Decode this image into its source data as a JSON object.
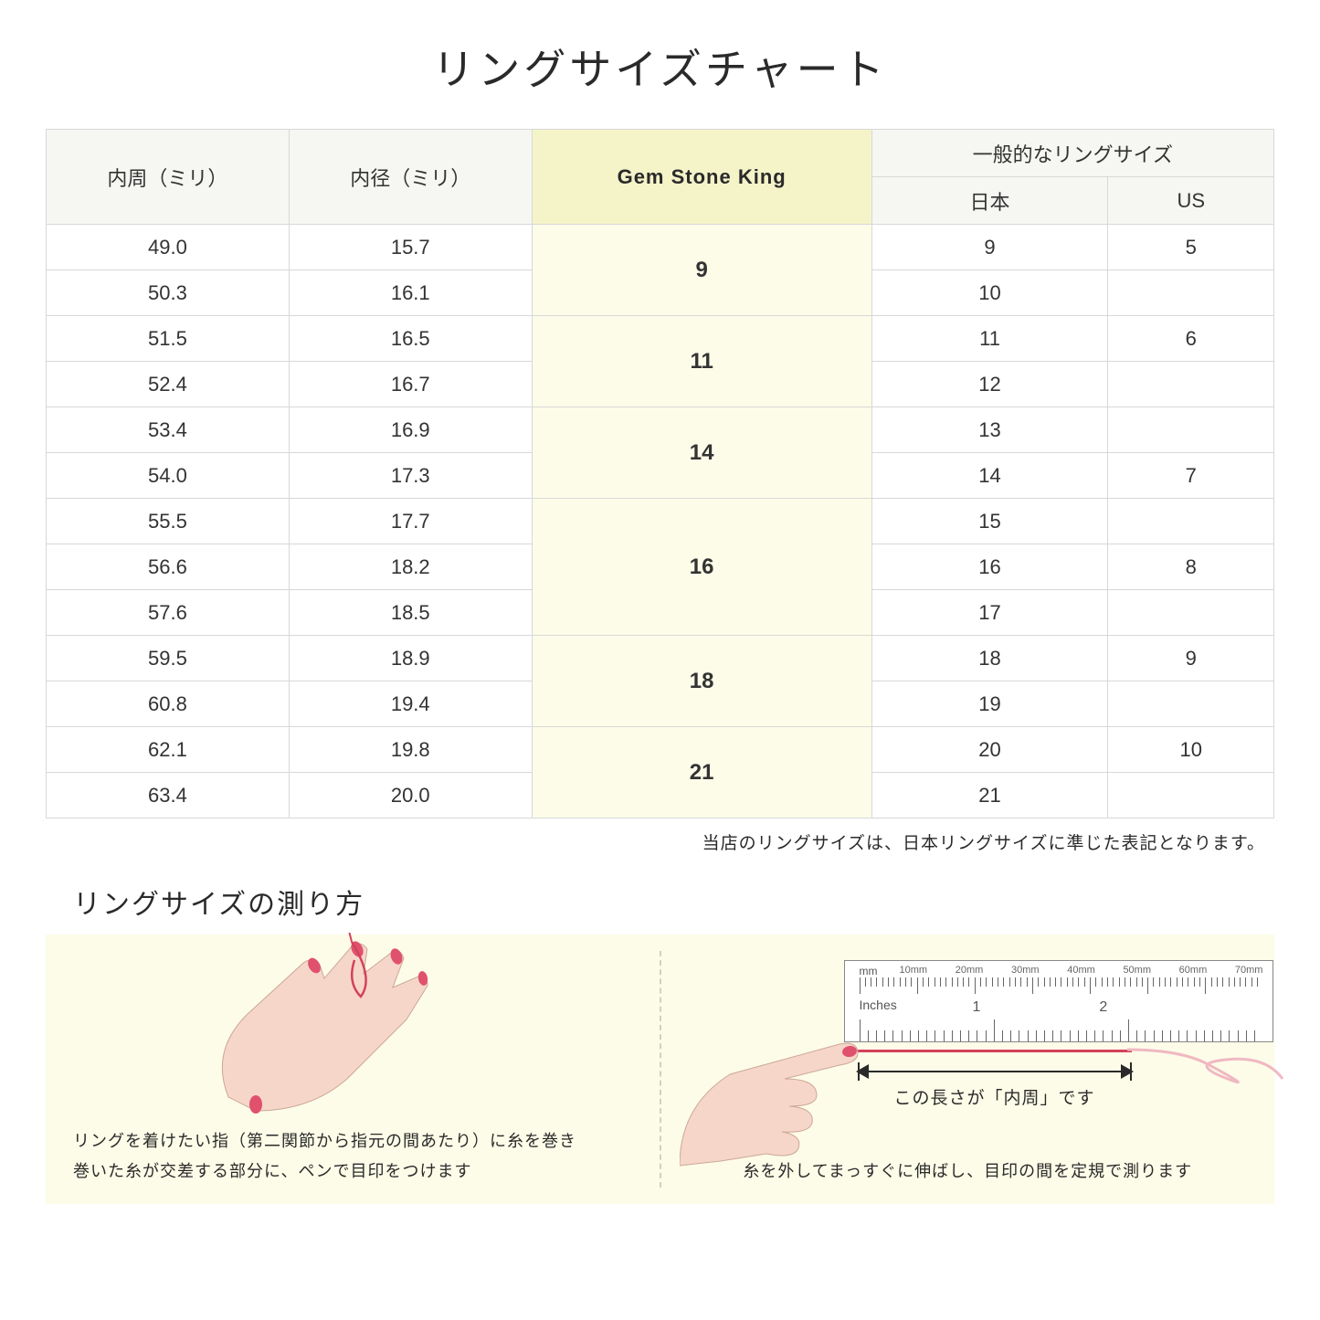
{
  "title": "リングサイズチャート",
  "table": {
    "headers": {
      "circumference": "内周（ミリ）",
      "diameter": "内径（ミリ）",
      "gsk": "Gem Stone King",
      "general": "一般的なリングサイズ",
      "jp": "日本",
      "us": "US"
    },
    "header_bg": "#f6f6f2",
    "gsk_header_bg": "#f5f4c9",
    "gsk_cell_bg": "#fdfce8",
    "border_color": "#d8d8d8",
    "groups": [
      {
        "gsk": "9",
        "rows": [
          {
            "c": "49.0",
            "d": "15.7",
            "jp": "9",
            "us": "5"
          },
          {
            "c": "50.3",
            "d": "16.1",
            "jp": "10",
            "us": ""
          }
        ]
      },
      {
        "gsk": "11",
        "rows": [
          {
            "c": "51.5",
            "d": "16.5",
            "jp": "11",
            "us": "6"
          },
          {
            "c": "52.4",
            "d": "16.7",
            "jp": "12",
            "us": ""
          }
        ]
      },
      {
        "gsk": "14",
        "rows": [
          {
            "c": "53.4",
            "d": "16.9",
            "jp": "13",
            "us": ""
          },
          {
            "c": "54.0",
            "d": "17.3",
            "jp": "14",
            "us": "7"
          }
        ]
      },
      {
        "gsk": "16",
        "rows": [
          {
            "c": "55.5",
            "d": "17.7",
            "jp": "15",
            "us": ""
          },
          {
            "c": "56.6",
            "d": "18.2",
            "jp": "16",
            "us": "8"
          },
          {
            "c": "57.6",
            "d": "18.5",
            "jp": "17",
            "us": ""
          }
        ]
      },
      {
        "gsk": "18",
        "rows": [
          {
            "c": "59.5",
            "d": "18.9",
            "jp": "18",
            "us": "9"
          },
          {
            "c": "60.8",
            "d": "19.4",
            "jp": "19",
            "us": ""
          }
        ]
      },
      {
        "gsk": "21",
        "rows": [
          {
            "c": "62.1",
            "d": "19.8",
            "jp": "20",
            "us": "10"
          },
          {
            "c": "63.4",
            "d": "20.0",
            "jp": "21",
            "us": ""
          }
        ]
      }
    ]
  },
  "footnote": "当店のリングサイズは、日本リングサイズに準じた表記となります。",
  "howto": {
    "title": "リングサイズの測り方",
    "bg": "#fdfce8",
    "left_caption_1": "リングを着けたい指（第二関節から指元の間あたり）に糸を巻き",
    "left_caption_2": "巻いた糸が交差する部分に、ペンで目印をつけます",
    "right_arrow_label": "この長さが「内周」です",
    "right_caption": "糸を外してまっすぐに伸ばし、目印の間を定規で測ります",
    "ruler": {
      "mm_label": "mm",
      "in_label": "Inches",
      "mm_marks": [
        "10mm",
        "20mm",
        "30mm",
        "40mm",
        "50mm",
        "60mm",
        "70mm"
      ],
      "in_marks": [
        "1",
        "2"
      ]
    },
    "skin_color": "#f6d6c8",
    "nail_color": "#e0516e",
    "thread_color": "#d4425a"
  }
}
